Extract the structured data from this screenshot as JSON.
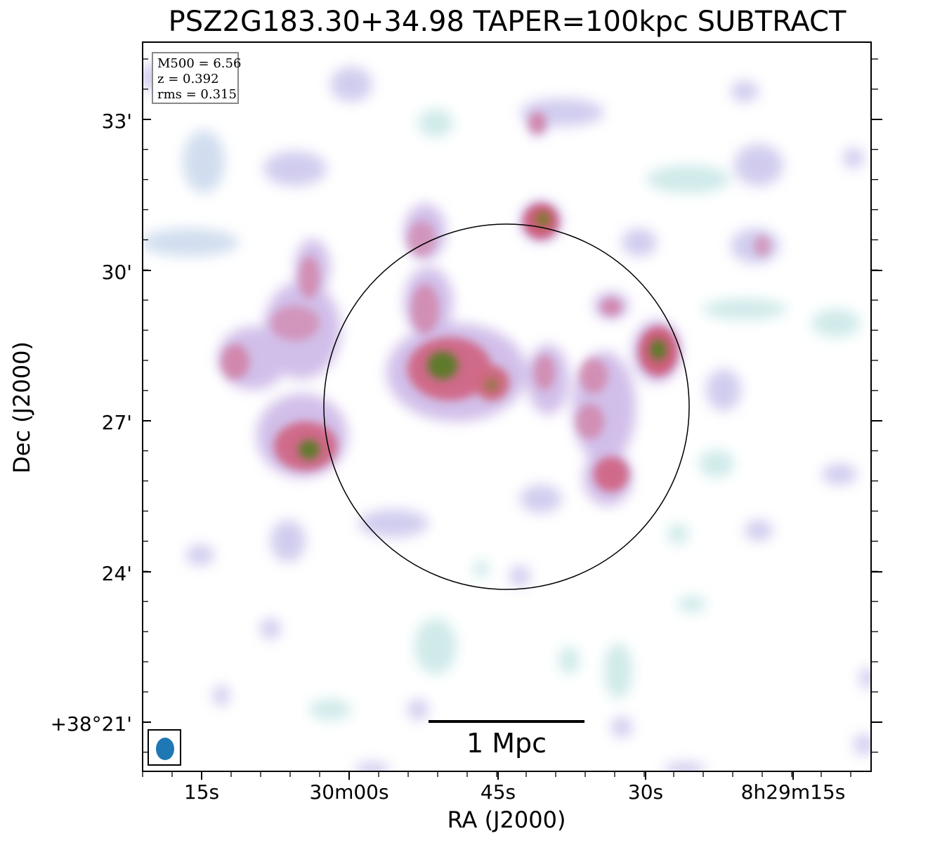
{
  "title": "PSZ2G183.30+34.98 TAPER=100kpc SUBTRACT",
  "info": {
    "m500": "M500 = 6.56",
    "z": "z = 0.392",
    "rms": "rms = 0.315"
  },
  "axes": {
    "xlabel": "RA (J2000)",
    "ylabel": "Dec (J2000)",
    "xticks": [
      "15s",
      "30m00s",
      "45s",
      "30s",
      "8h29m15s"
    ],
    "yticks": [
      "33'",
      "30'",
      "27'",
      "24'",
      "+38°21'"
    ]
  },
  "scalebar": {
    "label": "1 Mpc"
  },
  "colors": {
    "low": "#bfe6e6",
    "mid": "#c9a8e6",
    "high": "#d26a8e",
    "peak": "#6b7a2a",
    "beam": "#1f77b4"
  },
  "icons": {
    "beam": "beam-ellipse-icon"
  }
}
